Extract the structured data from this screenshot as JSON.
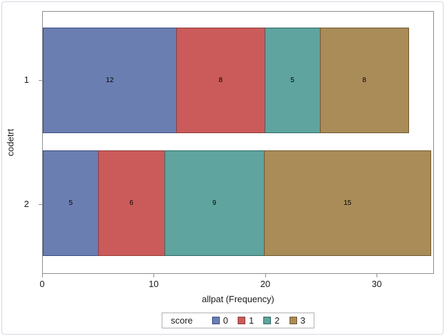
{
  "chart_data": {
    "type": "bar",
    "orientation": "horizontal-stacked",
    "title": "",
    "xlabel": "allpat (Frequency)",
    "ylabel": "codetrt",
    "categories": [
      "1",
      "2"
    ],
    "series": [
      {
        "name": "0",
        "color": "#6b7eb1",
        "border_color": "#3c4b84",
        "values": [
          12,
          5
        ]
      },
      {
        "name": "1",
        "color": "#cb5b5b",
        "border_color": "#8e3b3b",
        "values": [
          8,
          6
        ]
      },
      {
        "name": "2",
        "color": "#5fa49e",
        "border_color": "#2f6a64",
        "values": [
          5,
          9
        ]
      },
      {
        "name": "3",
        "color": "#a98c58",
        "border_color": "#6f5830",
        "values": [
          8,
          15
        ]
      }
    ],
    "xlim": [
      0,
      35
    ],
    "xticks": [
      0,
      10,
      20,
      30
    ],
    "legend_title": "score",
    "legend_position": "bottom-center",
    "grid": false,
    "bar_value_labels": true
  },
  "frame": {
    "plot_border_color": "#8c8c8c",
    "outer_border_color": "#d7d7e2",
    "background": "#ffffff"
  }
}
